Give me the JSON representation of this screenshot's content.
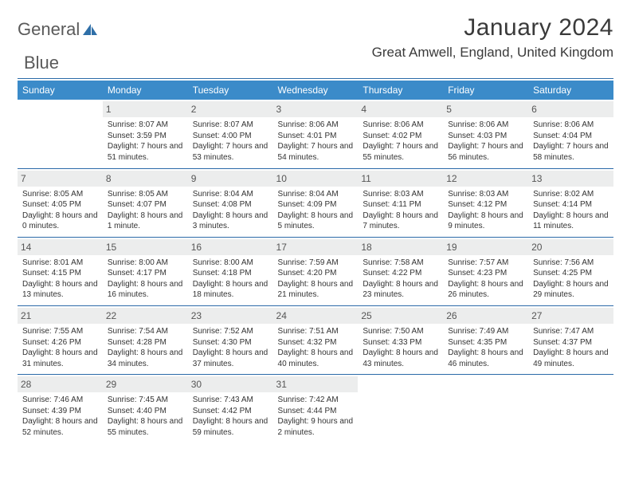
{
  "brand": {
    "name1": "General",
    "name2": "Blue"
  },
  "title": {
    "month": "January 2024",
    "location": "Great Amwell, England, United Kingdom"
  },
  "colors": {
    "header_bg": "#3b8bc9",
    "rule": "#2b6aa8",
    "daynum_bg": "#eceded"
  },
  "weekdays": [
    "Sunday",
    "Monday",
    "Tuesday",
    "Wednesday",
    "Thursday",
    "Friday",
    "Saturday"
  ],
  "weeks": [
    [
      null,
      {
        "n": "1",
        "sr": "8:07 AM",
        "ss": "3:59 PM",
        "dl": "7 hours and 51 minutes."
      },
      {
        "n": "2",
        "sr": "8:07 AM",
        "ss": "4:00 PM",
        "dl": "7 hours and 53 minutes."
      },
      {
        "n": "3",
        "sr": "8:06 AM",
        "ss": "4:01 PM",
        "dl": "7 hours and 54 minutes."
      },
      {
        "n": "4",
        "sr": "8:06 AM",
        "ss": "4:02 PM",
        "dl": "7 hours and 55 minutes."
      },
      {
        "n": "5",
        "sr": "8:06 AM",
        "ss": "4:03 PM",
        "dl": "7 hours and 56 minutes."
      },
      {
        "n": "6",
        "sr": "8:06 AM",
        "ss": "4:04 PM",
        "dl": "7 hours and 58 minutes."
      }
    ],
    [
      {
        "n": "7",
        "sr": "8:05 AM",
        "ss": "4:05 PM",
        "dl": "8 hours and 0 minutes."
      },
      {
        "n": "8",
        "sr": "8:05 AM",
        "ss": "4:07 PM",
        "dl": "8 hours and 1 minute."
      },
      {
        "n": "9",
        "sr": "8:04 AM",
        "ss": "4:08 PM",
        "dl": "8 hours and 3 minutes."
      },
      {
        "n": "10",
        "sr": "8:04 AM",
        "ss": "4:09 PM",
        "dl": "8 hours and 5 minutes."
      },
      {
        "n": "11",
        "sr": "8:03 AM",
        "ss": "4:11 PM",
        "dl": "8 hours and 7 minutes."
      },
      {
        "n": "12",
        "sr": "8:03 AM",
        "ss": "4:12 PM",
        "dl": "8 hours and 9 minutes."
      },
      {
        "n": "13",
        "sr": "8:02 AM",
        "ss": "4:14 PM",
        "dl": "8 hours and 11 minutes."
      }
    ],
    [
      {
        "n": "14",
        "sr": "8:01 AM",
        "ss": "4:15 PM",
        "dl": "8 hours and 13 minutes."
      },
      {
        "n": "15",
        "sr": "8:00 AM",
        "ss": "4:17 PM",
        "dl": "8 hours and 16 minutes."
      },
      {
        "n": "16",
        "sr": "8:00 AM",
        "ss": "4:18 PM",
        "dl": "8 hours and 18 minutes."
      },
      {
        "n": "17",
        "sr": "7:59 AM",
        "ss": "4:20 PM",
        "dl": "8 hours and 21 minutes."
      },
      {
        "n": "18",
        "sr": "7:58 AM",
        "ss": "4:22 PM",
        "dl": "8 hours and 23 minutes."
      },
      {
        "n": "19",
        "sr": "7:57 AM",
        "ss": "4:23 PM",
        "dl": "8 hours and 26 minutes."
      },
      {
        "n": "20",
        "sr": "7:56 AM",
        "ss": "4:25 PM",
        "dl": "8 hours and 29 minutes."
      }
    ],
    [
      {
        "n": "21",
        "sr": "7:55 AM",
        "ss": "4:26 PM",
        "dl": "8 hours and 31 minutes."
      },
      {
        "n": "22",
        "sr": "7:54 AM",
        "ss": "4:28 PM",
        "dl": "8 hours and 34 minutes."
      },
      {
        "n": "23",
        "sr": "7:52 AM",
        "ss": "4:30 PM",
        "dl": "8 hours and 37 minutes."
      },
      {
        "n": "24",
        "sr": "7:51 AM",
        "ss": "4:32 PM",
        "dl": "8 hours and 40 minutes."
      },
      {
        "n": "25",
        "sr": "7:50 AM",
        "ss": "4:33 PM",
        "dl": "8 hours and 43 minutes."
      },
      {
        "n": "26",
        "sr": "7:49 AM",
        "ss": "4:35 PM",
        "dl": "8 hours and 46 minutes."
      },
      {
        "n": "27",
        "sr": "7:47 AM",
        "ss": "4:37 PM",
        "dl": "8 hours and 49 minutes."
      }
    ],
    [
      {
        "n": "28",
        "sr": "7:46 AM",
        "ss": "4:39 PM",
        "dl": "8 hours and 52 minutes."
      },
      {
        "n": "29",
        "sr": "7:45 AM",
        "ss": "4:40 PM",
        "dl": "8 hours and 55 minutes."
      },
      {
        "n": "30",
        "sr": "7:43 AM",
        "ss": "4:42 PM",
        "dl": "8 hours and 59 minutes."
      },
      {
        "n": "31",
        "sr": "7:42 AM",
        "ss": "4:44 PM",
        "dl": "9 hours and 2 minutes."
      },
      null,
      null,
      null
    ]
  ],
  "labels": {
    "sunrise": "Sunrise:",
    "sunset": "Sunset:",
    "daylight": "Daylight:"
  }
}
